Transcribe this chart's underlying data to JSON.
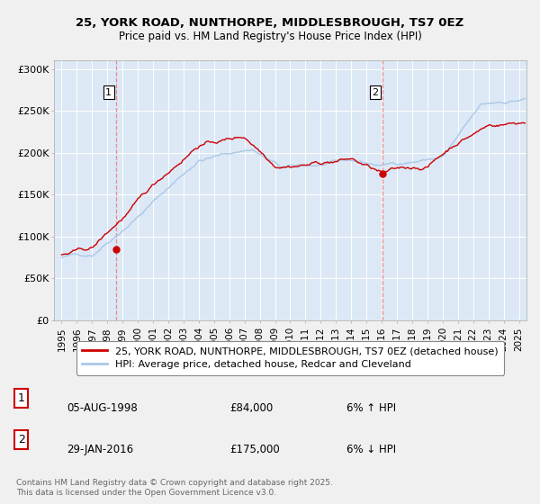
{
  "title1": "25, YORK ROAD, NUNTHORPE, MIDDLESBROUGH, TS7 0EZ",
  "title2": "Price paid vs. HM Land Registry's House Price Index (HPI)",
  "ylabel_ticks": [
    "£0",
    "£50K",
    "£100K",
    "£150K",
    "£200K",
    "£250K",
    "£300K"
  ],
  "ytick_values": [
    0,
    50000,
    100000,
    150000,
    200000,
    250000,
    300000
  ],
  "ylim": [
    0,
    310000
  ],
  "xlim_start": 1994.5,
  "xlim_end": 2025.5,
  "hpi_color": "#aac8e8",
  "price_color": "#cc0000",
  "vline_color": "#ee8888",
  "marker1_date": 1998.59,
  "marker1_value": 84000,
  "marker2_date": 2016.08,
  "marker2_value": 175000,
  "legend_line1": "25, YORK ROAD, NUNTHORPE, MIDDLESBROUGH, TS7 0EZ (detached house)",
  "legend_line2": "HPI: Average price, detached house, Redcar and Cleveland",
  "footnote": "Contains HM Land Registry data © Crown copyright and database right 2025.\nThis data is licensed under the Open Government Licence v3.0.",
  "background_color": "#f0f0f0",
  "plot_bg_color": "#dce8f5"
}
